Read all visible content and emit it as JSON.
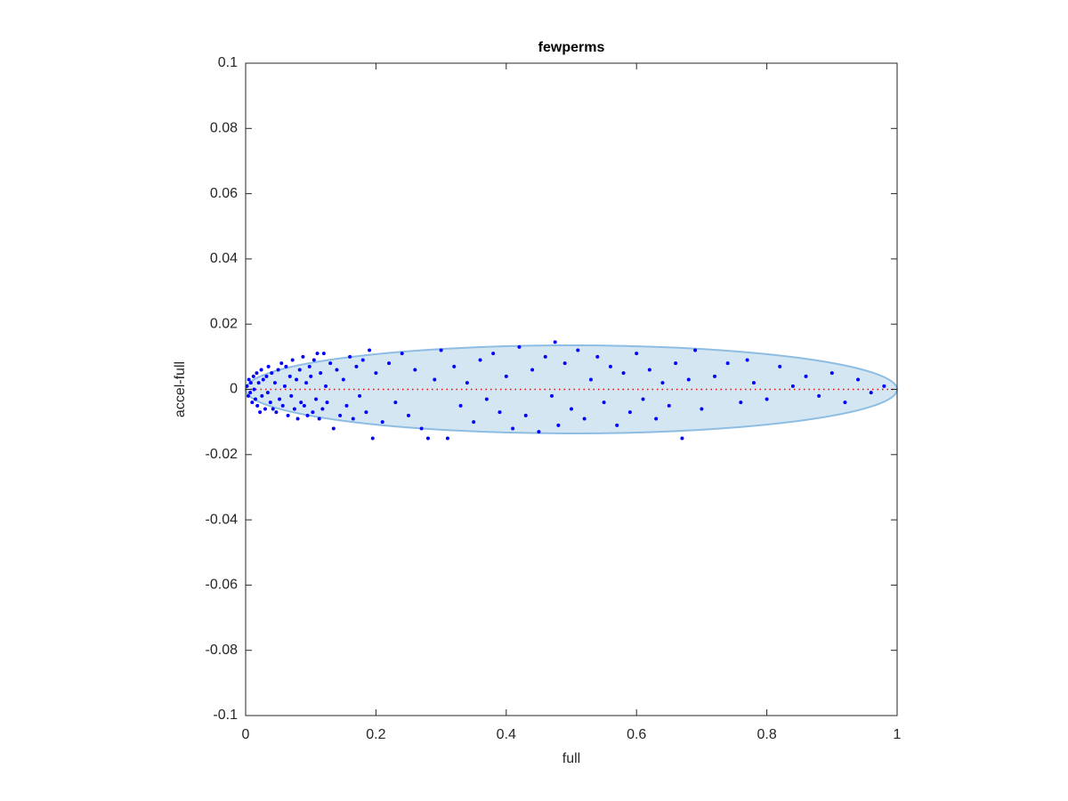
{
  "chart_data": {
    "type": "scatter",
    "title": "fewperms",
    "x_label": "full",
    "y_label": "accel-full",
    "color": "#0000ff",
    "x": [
      0.002,
      0.004,
      0.005,
      0.007,
      0.008,
      0.01,
      0.012,
      0.013,
      0.015,
      0.017,
      0.018,
      0.02,
      0.022,
      0.024,
      0.025,
      0.027,
      0.03,
      0.032,
      0.034,
      0.035,
      0.038,
      0.04,
      0.042,
      0.045,
      0.047,
      0.05,
      0.052,
      0.055,
      0.057,
      0.06,
      0.062,
      0.065,
      0.068,
      0.07,
      0.072,
      0.075,
      0.078,
      0.08,
      0.083,
      0.085,
      0.088,
      0.09,
      0.093,
      0.095,
      0.098,
      0.1,
      0.103,
      0.105,
      0.108,
      0.11,
      0.113,
      0.115,
      0.118,
      0.12,
      0.123,
      0.125,
      0.13,
      0.135,
      0.14,
      0.145,
      0.15,
      0.155,
      0.16,
      0.165,
      0.17,
      0.175,
      0.18,
      0.185,
      0.19,
      0.195,
      0.2,
      0.21,
      0.22,
      0.23,
      0.24,
      0.25,
      0.26,
      0.27,
      0.28,
      0.29,
      0.3,
      0.31,
      0.32,
      0.33,
      0.34,
      0.35,
      0.36,
      0.37,
      0.38,
      0.39,
      0.4,
      0.41,
      0.42,
      0.43,
      0.44,
      0.45,
      0.46,
      0.47,
      0.475,
      0.48,
      0.49,
      0.5,
      0.51,
      0.52,
      0.53,
      0.54,
      0.55,
      0.56,
      0.57,
      0.58,
      0.59,
      0.6,
      0.61,
      0.62,
      0.63,
      0.64,
      0.65,
      0.66,
      0.67,
      0.68,
      0.69,
      0.7,
      0.72,
      0.74,
      0.76,
      0.77,
      0.78,
      0.8,
      0.82,
      0.84,
      0.86,
      0.88,
      0.9,
      0.92,
      0.94,
      0.96,
      0.98
    ],
    "y": [
      0.001,
      -0.002,
      0.003,
      -0.001,
      0.002,
      -0.004,
      0.004,
      0.0,
      -0.003,
      0.005,
      -0.005,
      0.002,
      -0.007,
      0.006,
      -0.002,
      0.003,
      -0.006,
      0.004,
      -0.001,
      0.007,
      -0.004,
      0.005,
      -0.006,
      0.002,
      -0.007,
      0.006,
      -0.003,
      0.008,
      -0.005,
      0.001,
      0.007,
      -0.008,
      0.004,
      -0.002,
      0.009,
      -0.006,
      0.003,
      -0.009,
      0.006,
      -0.004,
      0.01,
      -0.005,
      0.002,
      -0.008,
      0.007,
      0.004,
      -0.007,
      0.009,
      -0.003,
      0.011,
      -0.009,
      0.005,
      -0.006,
      0.011,
      0.001,
      -0.004,
      0.008,
      -0.012,
      0.006,
      -0.008,
      0.003,
      -0.005,
      0.01,
      -0.009,
      0.007,
      -0.002,
      0.009,
      -0.007,
      0.012,
      -0.015,
      0.005,
      -0.01,
      0.008,
      -0.004,
      0.011,
      -0.008,
      0.006,
      -0.012,
      -0.015,
      0.003,
      0.012,
      -0.015,
      0.007,
      -0.005,
      0.002,
      -0.01,
      0.009,
      -0.003,
      0.011,
      -0.007,
      0.004,
      -0.012,
      0.013,
      -0.008,
      0.006,
      -0.013,
      0.01,
      -0.002,
      0.0145,
      -0.011,
      0.008,
      -0.006,
      0.012,
      -0.009,
      0.003,
      0.01,
      -0.004,
      0.007,
      -0.011,
      0.005,
      -0.007,
      0.011,
      -0.003,
      0.006,
      -0.009,
      0.002,
      -0.005,
      0.008,
      -0.015,
      0.003,
      0.012,
      -0.006,
      0.004,
      0.008,
      -0.004,
      0.009,
      0.002,
      -0.003,
      0.007,
      0.001,
      0.004,
      -0.002,
      0.005,
      -0.004,
      0.003,
      -0.001,
      0.001
    ],
    "ellipse": {
      "cx": 0.5,
      "cy": 0,
      "rx": 0.5,
      "ry": 0.0135,
      "fill": "#d5e6f3",
      "stroke": "#8dbde2"
    },
    "reference_line": {
      "y": 0,
      "color": "#ff0000"
    },
    "xlim": [
      0,
      1
    ],
    "xticks": [
      0,
      0.2,
      0.4,
      0.6,
      0.8,
      1
    ],
    "ylim": [
      -0.1,
      0.1
    ],
    "yticks": [
      -0.1,
      -0.08,
      -0.06,
      -0.04,
      -0.02,
      0,
      0.02,
      0.04,
      0.06,
      0.08,
      0.1
    ],
    "grid": false
  }
}
